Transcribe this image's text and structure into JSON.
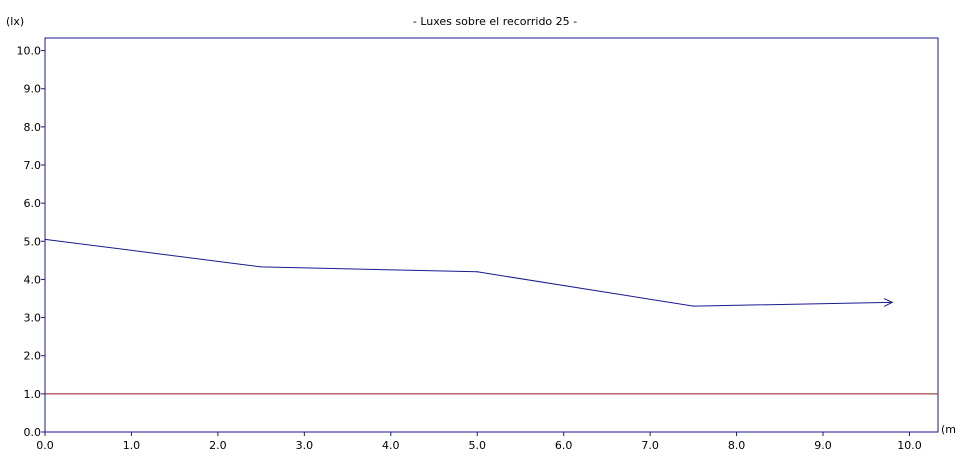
{
  "chart_data": {
    "type": "line",
    "title": "- Luxes sobre el recorrido 25 -",
    "ylabel": "(lx)",
    "xlabel": "(m",
    "xlim": [
      0,
      10.33
    ],
    "ylim": [
      0,
      10.33
    ],
    "x_ticks": [
      "0.0",
      "1.0",
      "2.0",
      "3.0",
      "4.0",
      "5.0",
      "6.0",
      "7.0",
      "8.0",
      "9.0",
      "10.0"
    ],
    "y_ticks": [
      "0.0",
      "1.0",
      "2.0",
      "3.0",
      "4.0",
      "5.0",
      "6.0",
      "7.0",
      "8.0",
      "9.0",
      "10.0"
    ],
    "grid": false,
    "series": [
      {
        "color": "#1a1a8c",
        "x": [
          0,
          2.5,
          5.0,
          7.5,
          9.8
        ],
        "y": [
          5.05,
          4.33,
          4.2,
          3.3,
          3.4
        ]
      }
    ],
    "reference_line": {
      "y": 1.0,
      "color": "#8b1a1a"
    },
    "frame_color": "#1a1a8c"
  }
}
